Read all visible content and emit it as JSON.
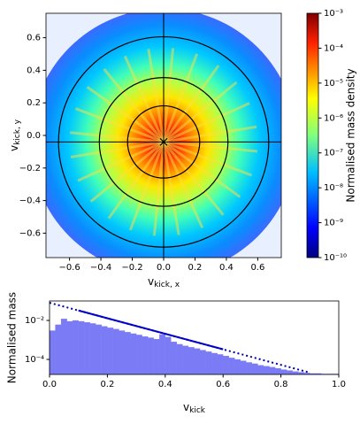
{
  "chart_data": [
    {
      "type": "density_map",
      "x_label": {
        "main": "v",
        "sub": "kick, x"
      },
      "y_label": {
        "main": "v",
        "sub": "kick, y"
      },
      "xlim": [
        -0.75,
        0.75
      ],
      "ylim": [
        -0.75,
        0.75
      ],
      "xticks": [
        {
          "value": -0.6,
          "label": "−0.6"
        },
        {
          "value": -0.4,
          "label": "−0.4"
        },
        {
          "value": -0.2,
          "label": "−0.2"
        },
        {
          "value": 0,
          "label": "0.0"
        },
        {
          "value": 0.2,
          "label": "0.2"
        },
        {
          "value": 0.4,
          "label": "0.4"
        },
        {
          "value": 0.6,
          "label": "0.6"
        }
      ],
      "yticks": [
        {
          "value": -0.6,
          "label": "−0.6"
        },
        {
          "value": -0.4,
          "label": "−0.4"
        },
        {
          "value": -0.2,
          "label": "−0.2"
        },
        {
          "value": 0,
          "label": "0.0"
        },
        {
          "value": 0.2,
          "label": "0.2"
        },
        {
          "value": 0.4,
          "label": "0.4"
        },
        {
          "value": 0.6,
          "label": "0.6"
        }
      ],
      "center": [
        0,
        -0.04
      ],
      "radii": [
        0.23,
        0.41,
        0.67
      ],
      "colorbar": {
        "label": "Normalised mass density",
        "log": true,
        "lim": [
          1e-10,
          0.001
        ],
        "ticks": [
          {
            "value": 1e-10,
            "label": "10⁻¹⁰"
          },
          {
            "value": 1e-09,
            "label": "10⁻⁹"
          },
          {
            "value": 1e-08,
            "label": "10⁻⁸"
          },
          {
            "value": 1e-07,
            "label": "10⁻⁷"
          },
          {
            "value": 1e-06,
            "label": "10⁻⁶"
          },
          {
            "value": 1e-05,
            "label": "10⁻⁵"
          },
          {
            "value": 0.0001,
            "label": "10⁻⁴"
          },
          {
            "value": 0.001,
            "label": "10⁻³"
          }
        ]
      }
    },
    {
      "type": "histogram",
      "x_label": {
        "main": "v",
        "sub": "kick"
      },
      "y_label": "Normalised mass",
      "log_y": true,
      "color": "#7b7bf5",
      "xlim": [
        0,
        1
      ],
      "ylim": [
        1.7e-05,
        0.1
      ],
      "xticks": [
        {
          "value": 0,
          "label": "0.0"
        },
        0.2,
        0.4,
        0.6,
        0.8,
        {
          "value": 1,
          "label": "1.0"
        }
      ],
      "yticks": [
        {
          "value": 0.0001,
          "label": "10⁻⁴"
        },
        {
          "value": 0.01,
          "label": "10⁻²"
        }
      ],
      "bins": [
        0,
        0.02,
        0.04,
        0.06,
        0.08,
        0.1,
        0.12,
        0.14,
        0.16,
        0.18,
        0.2,
        0.22,
        0.24,
        0.26,
        0.28,
        0.3,
        0.32,
        0.34,
        0.36,
        0.38,
        0.4,
        0.42,
        0.44,
        0.46,
        0.48,
        0.5,
        0.52,
        0.54,
        0.56,
        0.58,
        0.6,
        0.62,
        0.64,
        0.66,
        0.68,
        0.7,
        0.72,
        0.74,
        0.76,
        0.78,
        0.8,
        0.82,
        0.84,
        0.86,
        0.88,
        0.9,
        0.92,
        0.94,
        0.96,
        0.98,
        1
      ],
      "values": [
        0.003,
        0.006,
        0.012,
        0.009,
        0.01,
        0.009,
        0.008,
        0.007,
        0.006,
        0.005,
        0.0042,
        0.0036,
        0.003,
        0.0025,
        0.0021,
        0.0018,
        0.0015,
        0.0013,
        0.0011,
        0.0019,
        0.0014,
        0.0008,
        0.0006,
        0.0005,
        0.00042,
        0.00036,
        0.0003,
        0.00025,
        0.00021,
        0.00018,
        0.00015,
        0.00012,
        0.0001,
        8.5e-05,
        7e-05,
        6e-05,
        5e-05,
        4.5e-05,
        4e-05,
        3.5e-05,
        3e-05,
        2.7e-05,
        2.4e-05,
        2.2e-05,
        2e-05,
        1.9e-05,
        1.9e-05,
        1.8e-05,
        1.8e-05,
        1.8e-05
      ],
      "lines": [
        {
          "style": "solid",
          "color": "#0000dd",
          "x": [
            0.1,
            0.6
          ],
          "values": [
            0.0325,
            0.00033
          ]
        },
        {
          "style": "dotted",
          "color": "#0000aa",
          "x": [
            0,
            0.9
          ],
          "values": [
            0.081,
            2.1e-05
          ]
        }
      ]
    }
  ]
}
